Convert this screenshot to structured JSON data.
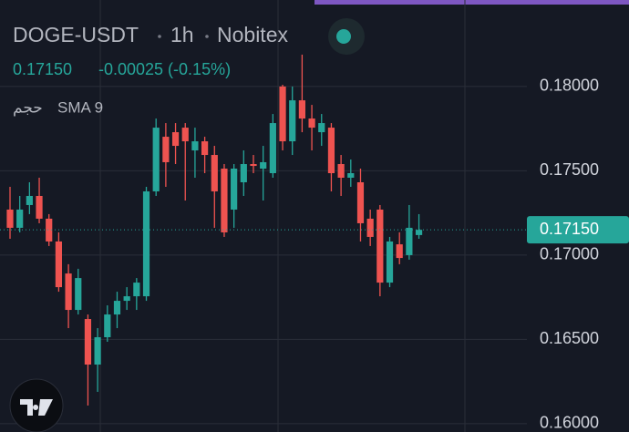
{
  "chart_data": {
    "type": "candlestick",
    "symbol": "DOGE-USDT",
    "interval": "1h",
    "exchange": "Nobitex",
    "last_price": "0.17150",
    "change": "-0.00025 (-0.15%)",
    "indicator_volume": "حجم",
    "indicator_sma": "SMA 9",
    "up_color": "#26a69a",
    "down_color": "#ef5350",
    "ylim": [
      0.15951,
      0.18513
    ],
    "yticks": [
      {
        "value": 0.16,
        "label": "0.16000"
      },
      {
        "value": 0.165,
        "label": "0.16500"
      },
      {
        "value": 0.17,
        "label": "0.17000"
      },
      {
        "value": 0.175,
        "label": "0.17500"
      },
      {
        "value": 0.18,
        "label": "0.18000"
      }
    ],
    "grid": true,
    "open": [
      0.1727,
      0.17162,
      0.17297,
      0.17351,
      0.17216,
      0.17081,
      0.16891,
      0.16675,
      0.16621,
      0.16351,
      0.16513,
      0.16648,
      0.16729,
      0.16756,
      0.16756,
      0.17378,
      0.17702,
      0.17729,
      0.17756,
      0.17621,
      0.17675,
      0.17594,
      0.17513,
      0.1727,
      0.17432,
      0.1754,
      0.17513,
      0.17486,
      0.18,
      0.17675,
      0.17918,
      0.1781,
      0.17729,
      0.17756,
      0.1754,
      0.17459,
      0.17432,
      0.17216,
      0.1727,
      0.16837,
      0.17064,
      0.17,
      0.17119
    ],
    "high": [
      0.17405,
      0.17351,
      0.17432,
      0.17459,
      0.17243,
      0.17135,
      0.16946,
      0.16919,
      0.16648,
      0.16567,
      0.16702,
      0.16783,
      0.1681,
      0.16864,
      0.17405,
      0.1781,
      0.17783,
      0.17783,
      0.17783,
      0.17756,
      0.17702,
      0.17648,
      0.1754,
      0.1754,
      0.17621,
      0.17594,
      0.17648,
      0.17837,
      0.1801,
      0.18,
      0.18189,
      0.17891,
      0.17837,
      0.17783,
      0.17594,
      0.17567,
      0.17513,
      0.1727,
      0.17297,
      0.17108,
      0.17135,
      0.17297,
      0.17243
    ],
    "low": [
      0.17097,
      0.17135,
      0.17243,
      0.17189,
      0.17054,
      0.16783,
      0.16567,
      0.16648,
      0.16108,
      0.16189,
      0.16486,
      0.16567,
      0.16675,
      0.16675,
      0.16729,
      0.17351,
      0.17405,
      0.1754,
      0.17324,
      0.17459,
      0.17486,
      0.17162,
      0.17108,
      0.17162,
      0.17351,
      0.17486,
      0.17324,
      0.17459,
      0.17621,
      0.17594,
      0.17729,
      0.17621,
      0.17648,
      0.17378,
      0.17351,
      0.17405,
      0.17081,
      0.17054,
      0.16756,
      0.1681,
      0.16946,
      0.16973,
      0.17097
    ],
    "close": [
      0.17162,
      0.1727,
      0.17351,
      0.17216,
      0.17081,
      0.1681,
      0.16675,
      0.16864,
      0.16351,
      0.16513,
      0.16648,
      0.16729,
      0.16756,
      0.16837,
      0.17378,
      0.17756,
      0.17551,
      0.17648,
      0.17675,
      0.17675,
      0.17594,
      0.17378,
      0.17135,
      0.17513,
      0.1754,
      0.17529,
      0.17551,
      0.17783,
      0.17675,
      0.17918,
      0.1781,
      0.17756,
      0.17783,
      0.17486,
      0.17459,
      0.17486,
      0.17189,
      0.17108,
      0.16837,
      0.17081,
      0.16983,
      0.17162,
      0.1715
    ]
  }
}
